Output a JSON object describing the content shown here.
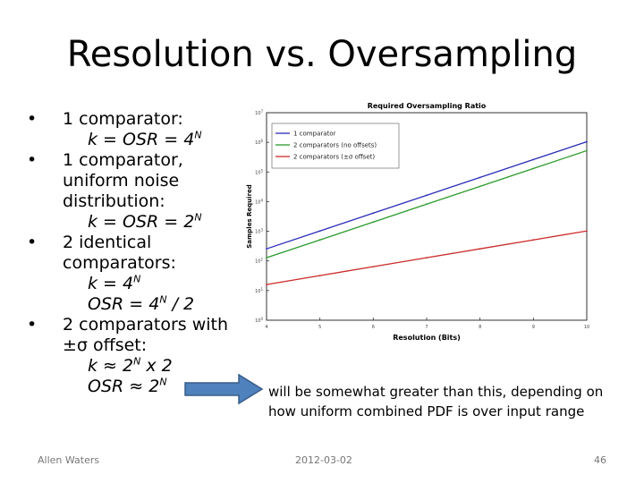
{
  "slide": {
    "title": "Resolution vs. Oversampling",
    "bullets": [
      {
        "main": "1 comparator:",
        "lines": [
          {
            "t": "k = OSR = 4",
            "sup": "N"
          }
        ]
      },
      {
        "main": "1 comparator, uniform noise distribution:",
        "lines": [
          {
            "t": "k = OSR  = 2",
            "sup": "N"
          }
        ]
      },
      {
        "main": "2 identical comparators:",
        "lines": [
          {
            "t": "k = 4",
            "sup": "N"
          },
          {
            "t": "OSR = 4",
            "sup": "N",
            "tail": " / 2"
          }
        ]
      },
      {
        "main": "2 comparators with ±σ offset:",
        "lines": [
          {
            "t": "k ≈ 2",
            "sup": "N",
            "tail": " x 2"
          },
          {
            "t": "OSR ≈ 2",
            "sup": "N"
          }
        ]
      }
    ],
    "note_lines": [
      "will be somewhat greater than this, depending on",
      "how uniform combined PDF is over input range"
    ],
    "arrow_color": "#4f81bd",
    "footer": {
      "author": "Allen Waters",
      "date": "2012-03-02",
      "page": "46"
    }
  },
  "chart_data": {
    "type": "line",
    "title": "Required Oversampling Ratio",
    "xlabel": "Resolution (Bits)",
    "ylabel": "Samples Required",
    "xlim": [
      4,
      10
    ],
    "ylim_log10": [
      0,
      7
    ],
    "x": [
      4,
      5,
      6,
      7,
      8,
      9,
      10
    ],
    "x_ticks": [
      "4",
      "5",
      "6",
      "7",
      "8",
      "9",
      "10"
    ],
    "y_ticks": [
      {
        "base": "10",
        "exp": "0",
        "log": 0
      },
      {
        "base": "10",
        "exp": "1",
        "log": 1
      },
      {
        "base": "10",
        "exp": "2",
        "log": 2
      },
      {
        "base": "10",
        "exp": "3",
        "log": 3
      },
      {
        "base": "10",
        "exp": "4",
        "log": 4
      },
      {
        "base": "10",
        "exp": "5",
        "log": 5
      },
      {
        "base": "10",
        "exp": "6",
        "log": 6
      },
      {
        "base": "10",
        "exp": "7",
        "log": 7
      }
    ],
    "legend_position": "top-left",
    "series": [
      {
        "name": "1 comparator",
        "color": "#2b2bb8",
        "values": [
          256,
          1024,
          4096,
          16384,
          65536,
          262144,
          1048576
        ]
      },
      {
        "name": "2 comparators (no offsets)",
        "color": "#2a9a2a",
        "values": [
          128,
          512,
          2048,
          8192,
          32768,
          131072,
          524288
        ]
      },
      {
        "name": "2 comparators (±σ offset)",
        "color": "#cc2a2a",
        "values": [
          16,
          32,
          64,
          128,
          256,
          512,
          1024
        ]
      }
    ]
  }
}
